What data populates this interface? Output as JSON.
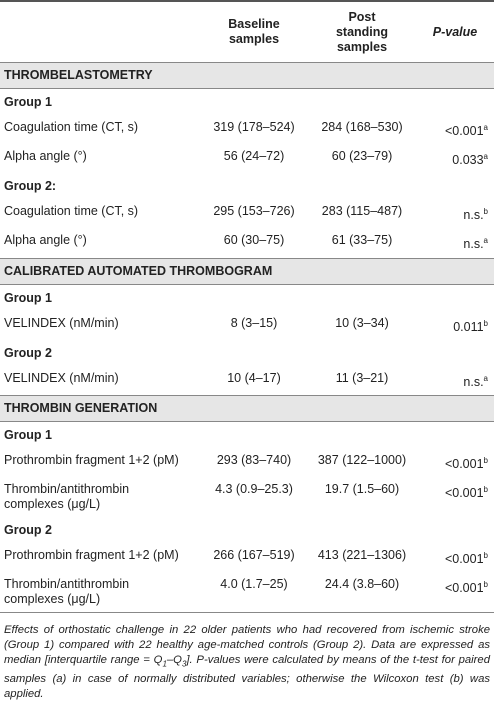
{
  "header": {
    "label": "",
    "baseline": "Baseline samples",
    "post": "Post standing samples",
    "p_value": "P-value"
  },
  "sections": [
    {
      "title": "THROMBELASTOMETRY",
      "groups": [
        {
          "title": "Group 1",
          "rows": [
            {
              "label": [
                "Coagulation time (CT, s)"
              ],
              "baseline": "319 (178–524)",
              "post": "284 (168–530)",
              "p": "<0.001",
              "p_sup": "a"
            },
            {
              "label": [
                "Alpha angle (°)"
              ],
              "baseline": "56 (24–72)",
              "post": "60 (23–79)",
              "p": "0.033",
              "p_sup": "a"
            }
          ]
        },
        {
          "title": "Group 2:",
          "rows": [
            {
              "label": [
                "Coagulation time (CT, s)"
              ],
              "baseline": "295 (153–726)",
              "post": "283 (115–487)",
              "p": "n.s.",
              "p_sup": "b"
            },
            {
              "label": [
                "Alpha angle (°)"
              ],
              "baseline": "60 (30–75)",
              "post": "61 (33–75)",
              "p": "n.s.",
              "p_sup": "a"
            }
          ]
        }
      ]
    },
    {
      "title": "CALIBRATED AUTOMATED THROMBOGRAM",
      "groups": [
        {
          "title": "Group 1",
          "rows": [
            {
              "label": [
                "VELINDEX (nM/min)"
              ],
              "baseline": "8 (3–15)",
              "post": "10 (3–34)",
              "p": "0.011",
              "p_sup": "b"
            }
          ]
        },
        {
          "title": "Group 2",
          "rows": [
            {
              "label": [
                "VELINDEX (nM/min)"
              ],
              "baseline": "10 (4–17)",
              "post": "11 (3–21)",
              "p": "n.s.",
              "p_sup": "a"
            }
          ]
        }
      ]
    },
    {
      "title": "THROMBIN GENERATION",
      "groups": [
        {
          "title": "Group 1",
          "rows": [
            {
              "label": [
                "Prothrombin fragment 1+2 (pM)"
              ],
              "baseline": "293 (83–740)",
              "post": "387 (122–1000)",
              "p": "<0.001",
              "p_sup": "b"
            },
            {
              "label": [
                "Thrombin/antithrombin",
                "complexes (μg/L)"
              ],
              "baseline": "4.3 (0.9–25.3)",
              "post": "19.7 (1.5–60)",
              "p": "<0.001",
              "p_sup": "b"
            }
          ]
        },
        {
          "title": "Group 2",
          "rows": [
            {
              "label": [
                "Prothrombin fragment 1+2 (pM)"
              ],
              "baseline": "266 (167–519)",
              "post": "413 (221–1306)",
              "p": "<0.001",
              "p_sup": "b"
            },
            {
              "label": [
                "Thrombin/antithrombin",
                "complexes (μg/L)"
              ],
              "baseline": "4.0 (1.7–25)",
              "post": "24.4 (3.8–60)",
              "p": "<0.001",
              "p_sup": "b"
            }
          ]
        }
      ]
    }
  ],
  "footnote": {
    "text_1": "Effects of orthostatic challenge in 22 older patients who had recovered from ischemic stroke (Group 1) compared with 22 healthy age-matched controls (Group 2). Data are expressed as median [interquartile range = Q",
    "sub_1": "1",
    "text_2": "–Q",
    "sub_2": "3",
    "text_3": "]. P-values were calculated by means of the t-test for paired samples (a) in case of normally distributed variables; otherwise the Wilcoxon test (b) was applied."
  }
}
